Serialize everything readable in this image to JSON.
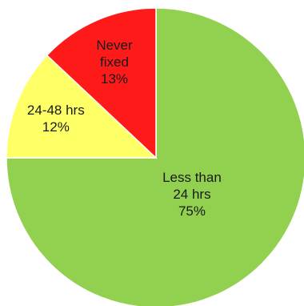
{
  "chart_data": {
    "type": "pie",
    "title": "",
    "slices": [
      {
        "label_lines": [
          "Less than",
          "24 hrs"
        ],
        "percent_label": "75%",
        "value": 75,
        "color": "#92d050"
      },
      {
        "label_lines": [
          "24-48 hrs"
        ],
        "percent_label": "12%",
        "value": 12,
        "color": "#ffff66"
      },
      {
        "label_lines": [
          "Never",
          "fixed"
        ],
        "percent_label": "13%",
        "value": 13,
        "color": "#ff1a1a"
      }
    ],
    "start_angle_deg": 0,
    "direction": "clockwise",
    "legend": "none"
  }
}
